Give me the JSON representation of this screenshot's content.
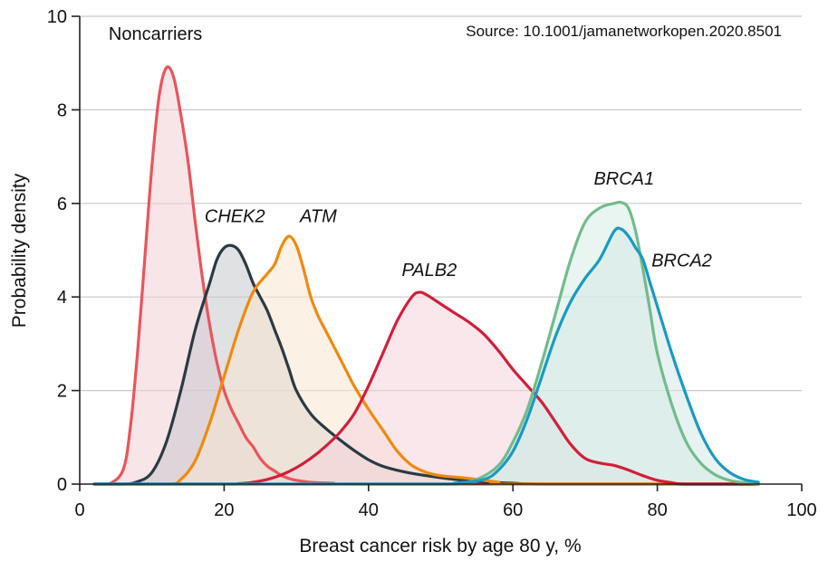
{
  "chart_data": {
    "type": "area",
    "xlabel": "Breast cancer risk by age 80 y, %",
    "ylabel": "Probability density",
    "source": "Source: 10.1001/jamanetworkopen.2020.8501",
    "xlim": [
      0,
      100
    ],
    "ylim": [
      0,
      10
    ],
    "xticks": [
      "0",
      "20",
      "40",
      "60",
      "80",
      "100"
    ],
    "yticks": [
      "0",
      "2",
      "4",
      "6",
      "8",
      "10"
    ],
    "grid": "horizontal",
    "series": [
      {
        "name": "Noncarriers",
        "italic": false,
        "label_at": [
          4,
          9.5
        ],
        "color": "#e8555c",
        "fill": "#f3cfd6",
        "points": [
          [
            2,
            0
          ],
          [
            4,
            0
          ],
          [
            6,
            0.3
          ],
          [
            7,
            1.2
          ],
          [
            8,
            2.8
          ],
          [
            9,
            4.8
          ],
          [
            10,
            6.8
          ],
          [
            11,
            8.3
          ],
          [
            12,
            8.9
          ],
          [
            13,
            8.7
          ],
          [
            14,
            7.9
          ],
          [
            15,
            6.9
          ],
          [
            16,
            5.6
          ],
          [
            17,
            4.4
          ],
          [
            18,
            3.4
          ],
          [
            19,
            2.6
          ],
          [
            20,
            2.0
          ],
          [
            21,
            1.6
          ],
          [
            22,
            1.3
          ],
          [
            23,
            1.0
          ],
          [
            24,
            0.8
          ],
          [
            25,
            0.55
          ],
          [
            26,
            0.38
          ],
          [
            27,
            0.28
          ],
          [
            28,
            0.18
          ],
          [
            29,
            0.12
          ],
          [
            30,
            0.08
          ],
          [
            32,
            0.04
          ],
          [
            35,
            0.02
          ],
          [
            40,
            0
          ],
          [
            94,
            0
          ]
        ]
      },
      {
        "name": "CHEK2",
        "italic": true,
        "label_at": [
          17.3,
          5.6
        ],
        "color": "#2a3a44",
        "fill": "#c6c8cc",
        "points": [
          [
            2,
            0
          ],
          [
            6,
            0
          ],
          [
            8,
            0.05
          ],
          [
            10,
            0.25
          ],
          [
            12,
            0.9
          ],
          [
            14,
            2.0
          ],
          [
            16,
            3.3
          ],
          [
            18,
            4.3
          ],
          [
            19,
            4.8
          ],
          [
            20,
            5.05
          ],
          [
            21,
            5.1
          ],
          [
            22,
            5.0
          ],
          [
            23,
            4.7
          ],
          [
            24,
            4.3
          ],
          [
            25,
            4.0
          ],
          [
            26,
            3.7
          ],
          [
            27,
            3.3
          ],
          [
            28,
            2.9
          ],
          [
            29,
            2.45
          ],
          [
            30,
            2.0
          ],
          [
            32,
            1.5
          ],
          [
            34,
            1.2
          ],
          [
            36,
            0.95
          ],
          [
            38,
            0.72
          ],
          [
            40,
            0.52
          ],
          [
            42,
            0.38
          ],
          [
            45,
            0.26
          ],
          [
            48,
            0.18
          ],
          [
            52,
            0.1
          ],
          [
            56,
            0.05
          ],
          [
            60,
            0.02
          ],
          [
            65,
            0
          ],
          [
            94,
            0
          ]
        ]
      },
      {
        "name": "ATM",
        "italic": true,
        "label_at": [
          30.5,
          5.6
        ],
        "color": "#f0890f",
        "fill": "#f8e6cf",
        "points": [
          [
            2,
            0
          ],
          [
            12,
            0
          ],
          [
            14,
            0.1
          ],
          [
            16,
            0.5
          ],
          [
            18,
            1.3
          ],
          [
            20,
            2.3
          ],
          [
            22,
            3.3
          ],
          [
            24,
            4.1
          ],
          [
            26,
            4.5
          ],
          [
            27,
            4.7
          ],
          [
            28,
            5.1
          ],
          [
            29,
            5.3
          ],
          [
            30,
            5.1
          ],
          [
            31,
            4.6
          ],
          [
            32,
            4.0
          ],
          [
            33,
            3.6
          ],
          [
            34,
            3.3
          ],
          [
            35,
            3.0
          ],
          [
            36,
            2.7
          ],
          [
            37,
            2.4
          ],
          [
            38,
            2.1
          ],
          [
            40,
            1.6
          ],
          [
            42,
            1.15
          ],
          [
            44,
            0.7
          ],
          [
            46,
            0.4
          ],
          [
            48,
            0.25
          ],
          [
            50,
            0.18
          ],
          [
            52,
            0.15
          ],
          [
            54,
            0.12
          ],
          [
            56,
            0.08
          ],
          [
            58,
            0.04
          ],
          [
            60,
            0
          ],
          [
            94,
            0
          ]
        ]
      },
      {
        "name": "PALB2",
        "italic": true,
        "label_at": [
          44.6,
          4.45
        ],
        "color": "#d11f3a",
        "fill": "#f6d4dc",
        "points": [
          [
            2,
            0
          ],
          [
            20,
            0
          ],
          [
            22,
            0.01
          ],
          [
            24,
            0.04
          ],
          [
            26,
            0.1
          ],
          [
            28,
            0.2
          ],
          [
            30,
            0.35
          ],
          [
            32,
            0.55
          ],
          [
            34,
            0.8
          ],
          [
            36,
            1.1
          ],
          [
            38,
            1.5
          ],
          [
            40,
            2.1
          ],
          [
            42,
            2.8
          ],
          [
            44,
            3.5
          ],
          [
            46,
            4.0
          ],
          [
            47,
            4.1
          ],
          [
            48,
            4.05
          ],
          [
            50,
            3.85
          ],
          [
            52,
            3.65
          ],
          [
            54,
            3.45
          ],
          [
            56,
            3.2
          ],
          [
            58,
            2.85
          ],
          [
            60,
            2.45
          ],
          [
            62,
            2.1
          ],
          [
            64,
            1.75
          ],
          [
            66,
            1.3
          ],
          [
            68,
            0.85
          ],
          [
            70,
            0.55
          ],
          [
            72,
            0.45
          ],
          [
            74,
            0.4
          ],
          [
            76,
            0.3
          ],
          [
            78,
            0.18
          ],
          [
            80,
            0.08
          ],
          [
            82,
            0.03
          ],
          [
            84,
            0
          ],
          [
            94,
            0
          ]
        ]
      },
      {
        "name": "BRCA1",
        "italic": true,
        "label_at": [
          71.2,
          6.4
        ],
        "color": "#72bb8c",
        "fill": "#d6ece4",
        "points": [
          [
            2,
            0
          ],
          [
            48,
            0
          ],
          [
            52,
            0.02
          ],
          [
            55,
            0.1
          ],
          [
            58,
            0.4
          ],
          [
            60,
            0.9
          ],
          [
            62,
            1.6
          ],
          [
            64,
            2.6
          ],
          [
            66,
            3.7
          ],
          [
            68,
            4.8
          ],
          [
            70,
            5.6
          ],
          [
            72,
            5.9
          ],
          [
            74,
            6.0
          ],
          [
            75,
            6.02
          ],
          [
            76,
            5.9
          ],
          [
            77,
            5.4
          ],
          [
            78,
            4.6
          ],
          [
            79,
            3.7
          ],
          [
            80,
            2.8
          ],
          [
            82,
            1.7
          ],
          [
            84,
            0.9
          ],
          [
            86,
            0.45
          ],
          [
            88,
            0.2
          ],
          [
            90,
            0.08
          ],
          [
            92,
            0.03
          ],
          [
            94,
            0
          ]
        ]
      },
      {
        "name": "BRCA2",
        "italic": true,
        "label_at": [
          79.2,
          4.65
        ],
        "color": "#1a9ac2",
        "fill": "#d5e7e6",
        "points": [
          [
            2,
            0
          ],
          [
            48,
            0
          ],
          [
            52,
            0.02
          ],
          [
            56,
            0.1
          ],
          [
            58,
            0.3
          ],
          [
            60,
            0.7
          ],
          [
            62,
            1.4
          ],
          [
            64,
            2.3
          ],
          [
            66,
            3.2
          ],
          [
            68,
            3.9
          ],
          [
            70,
            4.4
          ],
          [
            72,
            4.8
          ],
          [
            74,
            5.4
          ],
          [
            75,
            5.45
          ],
          [
            76,
            5.3
          ],
          [
            77,
            5.05
          ],
          [
            78,
            4.8
          ],
          [
            79,
            4.3
          ],
          [
            80,
            3.8
          ],
          [
            82,
            2.8
          ],
          [
            84,
            1.9
          ],
          [
            86,
            1.1
          ],
          [
            88,
            0.55
          ],
          [
            90,
            0.25
          ],
          [
            92,
            0.1
          ],
          [
            94,
            0.04
          ]
        ]
      }
    ]
  }
}
